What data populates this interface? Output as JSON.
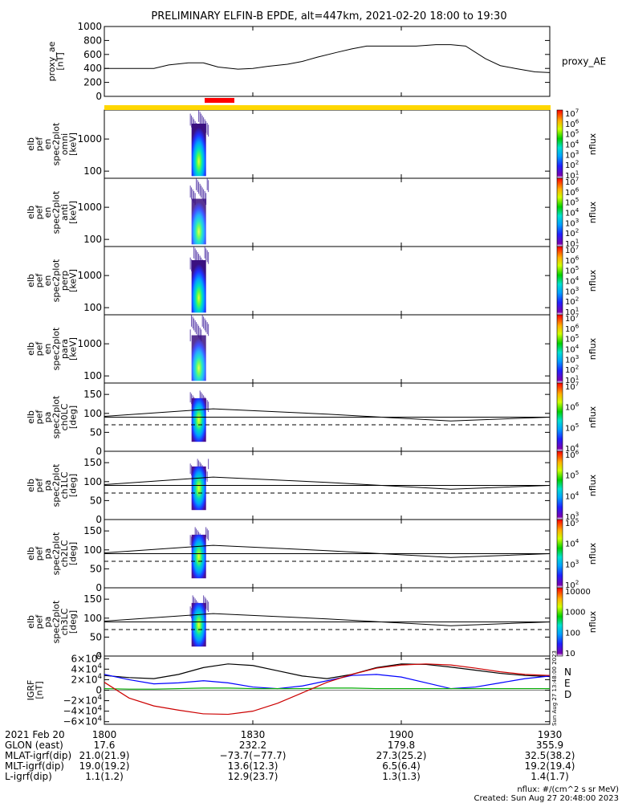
{
  "title": "PRELIMINARY ELFIN-B EPDE, alt=447km, 2021-02-20 18:00 to 19:30",
  "colors": {
    "yellow_bar": "#ffd700",
    "red_bar": "#ff0000",
    "igrf_black": "#000000",
    "igrf_blue": "#0000ff",
    "igrf_green": "#00aa00",
    "igrf_red": "#cc0000"
  },
  "chart_data": [
    {
      "type": "line",
      "ylabel": [
        "proxy_ae",
        "[nT]"
      ],
      "ylim": [
        0,
        1000
      ],
      "yticks": [
        "1000",
        "800",
        "600",
        "400",
        "200",
        "0"
      ],
      "ytick_values": [
        1000,
        800,
        600,
        400,
        200,
        0
      ],
      "legend": "proxy_AE",
      "x": [
        0,
        8,
        10,
        13,
        17,
        20,
        23,
        27,
        30,
        33,
        37,
        40,
        43,
        47,
        50,
        53,
        57,
        60,
        63,
        67,
        70,
        73,
        77,
        80,
        83,
        87,
        90
      ],
      "values": [
        400,
        400,
        400,
        450,
        480,
        480,
        420,
        390,
        400,
        430,
        460,
        500,
        560,
        630,
        680,
        720,
        720,
        720,
        720,
        740,
        740,
        720,
        540,
        440,
        400,
        350,
        340
      ]
    },
    {
      "type": "heatmap",
      "ylabel": [
        "elb",
        "pef",
        "en",
        "spec2plot",
        "omni",
        "[keV]"
      ],
      "yscale": "log",
      "ylim": [
        60,
        8000
      ],
      "yticks": [
        "1000",
        "100"
      ],
      "ytick_values": [
        1000,
        100
      ],
      "colorbar": {
        "label": "nflux",
        "ticks": [
          "10^7",
          "10^6",
          "10^5",
          "10^4",
          "10^3",
          "10^2",
          "10^1"
        ]
      }
    },
    {
      "type": "heatmap",
      "ylabel": [
        "elb",
        "pef",
        "en",
        "spec2plot",
        "anti",
        "[keV]"
      ],
      "yscale": "log",
      "ylim": [
        60,
        8000
      ],
      "yticks": [
        "1000",
        "100"
      ],
      "ytick_values": [
        1000,
        100
      ],
      "colorbar": {
        "label": "nflux",
        "ticks": [
          "10^7",
          "10^6",
          "10^5",
          "10^4",
          "10^3",
          "10^2",
          "10^1"
        ]
      }
    },
    {
      "type": "heatmap",
      "ylabel": [
        "elb",
        "pef",
        "en",
        "spec2plot",
        "perp",
        "[keV]"
      ],
      "yscale": "log",
      "ylim": [
        60,
        8000
      ],
      "yticks": [
        "1000",
        "100"
      ],
      "ytick_values": [
        1000,
        100
      ],
      "colorbar": {
        "label": "nflux",
        "ticks": [
          "10^7",
          "10^6",
          "10^5",
          "10^4",
          "10^3",
          "10^2",
          "10^1"
        ]
      }
    },
    {
      "type": "heatmap",
      "ylabel": [
        "elb",
        "pef",
        "en",
        "spec2plot",
        "para",
        "[keV]"
      ],
      "yscale": "log",
      "ylim": [
        60,
        8000
      ],
      "yticks": [
        "1000",
        "100"
      ],
      "ytick_values": [
        1000,
        100
      ],
      "colorbar": {
        "label": "nflux",
        "ticks": [
          "10^7",
          "10^6",
          "10^5",
          "10^4",
          "10^3",
          "10^2",
          "10^1"
        ]
      }
    },
    {
      "type": "heatmap",
      "ylabel": [
        "elb",
        "pef",
        "pa",
        "spec2plot",
        "ch0LC",
        "[deg]"
      ],
      "ylim": [
        0,
        180
      ],
      "yticks": [
        "150",
        "100",
        "50",
        "0"
      ],
      "ytick_values": [
        150,
        100,
        50,
        0
      ],
      "colorbar": {
        "label": "nflux",
        "ticks": [
          "10^7",
          "10^6",
          "10^5",
          "10^4"
        ]
      }
    },
    {
      "type": "heatmap",
      "ylabel": [
        "elb",
        "pef",
        "pa",
        "spec2plot",
        "ch1LC",
        "[deg]"
      ],
      "ylim": [
        0,
        180
      ],
      "yticks": [
        "150",
        "100",
        "50",
        "0"
      ],
      "ytick_values": [
        150,
        100,
        50,
        0
      ],
      "colorbar": {
        "label": "nflux",
        "ticks": [
          "10^6",
          "10^5",
          "10^4",
          "10^3"
        ]
      }
    },
    {
      "type": "heatmap",
      "ylabel": [
        "elb",
        "pef",
        "pa",
        "spec2plot",
        "ch2LC",
        "[deg]"
      ],
      "ylim": [
        0,
        180
      ],
      "yticks": [
        "150",
        "100",
        "50",
        "0"
      ],
      "ytick_values": [
        150,
        100,
        50,
        0
      ],
      "colorbar": {
        "label": "nflux",
        "ticks": [
          "10^5",
          "10^4",
          "10^3",
          "10^2"
        ]
      }
    },
    {
      "type": "heatmap",
      "ylabel": [
        "elb",
        "pef",
        "pa",
        "spec2plot",
        "ch3LC",
        "[deg]"
      ],
      "ylim": [
        0,
        180
      ],
      "yticks": [
        "150",
        "100",
        "50",
        "0"
      ],
      "ytick_values": [
        150,
        100,
        50,
        0
      ],
      "colorbar": {
        "label": "nflux",
        "ticks": [
          "10000",
          "1000",
          "100",
          "10"
        ]
      }
    },
    {
      "type": "line",
      "ylabel": [
        "IGRF",
        "[nT]"
      ],
      "ylim": [
        -65000,
        65000
      ],
      "yticks": [
        "6×10^4",
        "4×10^4",
        "2×10^4",
        "0",
        "−2×10^4",
        "−4×10^4",
        "−6×10^4"
      ],
      "ytick_values": [
        60000,
        40000,
        20000,
        0,
        -20000,
        -40000,
        -60000
      ],
      "legend": [
        "N",
        "E",
        "D"
      ],
      "side_stamp": "Sun Aug 27 13:48:00 2023",
      "x": [
        0,
        5,
        10,
        15,
        20,
        25,
        30,
        35,
        40,
        45,
        50,
        55,
        60,
        65,
        70,
        75,
        80,
        85,
        90
      ],
      "series": [
        {
          "name": "black",
          "values": [
            28000,
            24000,
            22000,
            30000,
            43000,
            50000,
            47000,
            37000,
            27000,
            22000,
            30000,
            43000,
            50000,
            49000,
            44000,
            38000,
            32000,
            28000,
            26000
          ]
        },
        {
          "name": "blue",
          "values": [
            30000,
            20000,
            12000,
            14000,
            18000,
            14000,
            6000,
            3000,
            8000,
            18000,
            28000,
            30000,
            25000,
            14000,
            3000,
            6000,
            14000,
            22000,
            27000
          ]
        },
        {
          "name": "green",
          "values": [
            3000,
            2000,
            2000,
            3000,
            4000,
            4000,
            3000,
            3000,
            3000,
            4000,
            4000,
            3000,
            3000,
            3000,
            3000,
            3000,
            3000,
            3000,
            3000
          ]
        },
        {
          "name": "red",
          "values": [
            15000,
            -15000,
            -30000,
            -38000,
            -45000,
            -46000,
            -40000,
            -25000,
            -5000,
            15000,
            30000,
            42000,
            48000,
            50000,
            48000,
            42000,
            35000,
            30000,
            28000
          ]
        }
      ]
    }
  ],
  "time_axis": {
    "range": [
      0,
      90
    ],
    "ticks": [
      {
        "label": "1800",
        "t": 0
      },
      {
        "label": "1830",
        "t": 30
      },
      {
        "label": "1900",
        "t": 60
      },
      {
        "label": "1930",
        "t": 90
      }
    ]
  },
  "ephemeris": {
    "rows": [
      {
        "label": "2021 Feb 20",
        "values": [
          "1800",
          "1830",
          "1900",
          "1930"
        ]
      },
      {
        "label": "GLON (east)",
        "values": [
          "17.6",
          "232.2",
          "179.8",
          "355.9"
        ]
      },
      {
        "label": "MLAT-igrf(dip)",
        "values": [
          "21.0(21.9)",
          "−73.7(−77.7)",
          "27.3(25.2)",
          "32.5(38.2)"
        ]
      },
      {
        "label": "MLT-igrf(dip)",
        "values": [
          "19.0(19.2)",
          "13.6(12.3)",
          "6.5(6.4)",
          "19.2(19.4)"
        ]
      },
      {
        "label": "L-igrf(dip)",
        "values": [
          "1.1(1.2)",
          "12.9(23.7)",
          "1.3(1.3)",
          "1.4(1.7)"
        ]
      }
    ]
  },
  "footer": {
    "units": "nflux: #/(cm^2 s sr MeV)",
    "created": "Created: Sun Aug 27 20:48:00 2023"
  }
}
